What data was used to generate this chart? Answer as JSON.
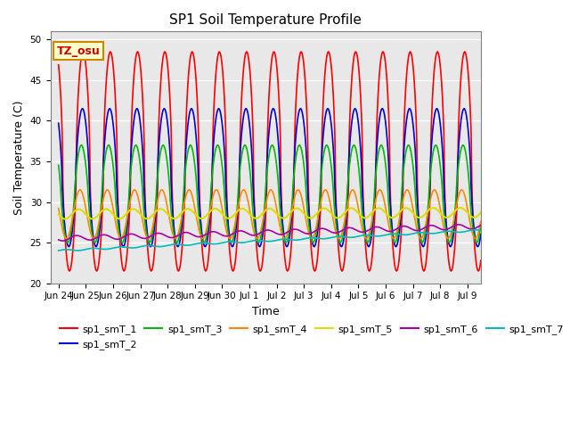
{
  "title": "SP1 Soil Temperature Profile",
  "xlabel": "Time",
  "ylabel": "Soil Temperature (C)",
  "ylim": [
    20,
    51
  ],
  "yticks": [
    20,
    25,
    30,
    35,
    40,
    45,
    50
  ],
  "tz_label": "TZ_osu",
  "tz_bg": "#FFFFCC",
  "tz_border": "#CC8800",
  "tz_text_color": "#CC0000",
  "background_color": "#E8E8E8",
  "grid_color": "white",
  "series_order": [
    "sp1_smT_1",
    "sp1_smT_2",
    "sp1_smT_3",
    "sp1_smT_4",
    "sp1_smT_5",
    "sp1_smT_6",
    "sp1_smT_7"
  ],
  "series": {
    "sp1_smT_1": {
      "color": "#FF0000",
      "lw": 1.2
    },
    "sp1_smT_2": {
      "color": "#0000DD",
      "lw": 1.2
    },
    "sp1_smT_3": {
      "color": "#00BB00",
      "lw": 1.2
    },
    "sp1_smT_4": {
      "color": "#FF8800",
      "lw": 1.2
    },
    "sp1_smT_5": {
      "color": "#DDDD00",
      "lw": 1.5
    },
    "sp1_smT_6": {
      "color": "#AA00AA",
      "lw": 1.2
    },
    "sp1_smT_7": {
      "color": "#00BBBB",
      "lw": 1.2
    }
  },
  "xtick_labels": [
    "Jun 24",
    "Jun 25",
    "Jun 26",
    "Jun 27",
    "Jun 28",
    "Jun 29",
    "Jun 30",
    "Jul 1",
    "Jul 2",
    "Jul 3",
    "Jul 4",
    "Jul 5",
    "Jul 6",
    "Jul 7",
    "Jul 8",
    "Jul 9"
  ],
  "xtick_positions": [
    0,
    1,
    2,
    3,
    4,
    5,
    6,
    7,
    8,
    9,
    10,
    11,
    12,
    13,
    14,
    15
  ],
  "figsize": [
    6.4,
    4.8
  ],
  "dpi": 100
}
